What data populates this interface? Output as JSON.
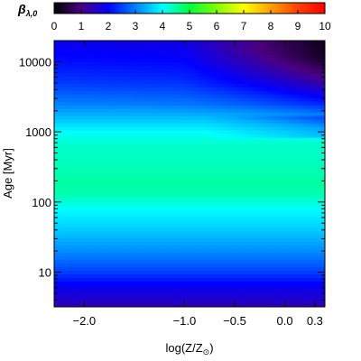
{
  "chart_data": {
    "type": "heatmap",
    "title": "",
    "xlabel": "log(Z/Z",
    "xlabel_sub": "⊙",
    "xlabel_close": ")",
    "ylabel": "Age [Myr]",
    "y_scale": "log",
    "xlim": [
      -2.3,
      0.4
    ],
    "ylim": [
      3.2,
      20000
    ],
    "x_ticks": [
      {
        "value": -2.0,
        "label": "−2.0"
      },
      {
        "value": -1.0,
        "label": "−1.0"
      },
      {
        "value": -0.5,
        "label": "−0.5"
      },
      {
        "value": 0.0,
        "label": "0.0"
      },
      {
        "value": 0.3,
        "label": "0.3"
      }
    ],
    "y_ticks": [
      {
        "value": 10,
        "label": "10"
      },
      {
        "value": 100,
        "label": "100"
      },
      {
        "value": 1000,
        "label": "1000"
      },
      {
        "value": 10000,
        "label": "10000"
      }
    ],
    "colorbar": {
      "label": "β",
      "label_sub": "λ,0",
      "range": [
        0,
        10
      ],
      "ticks": [
        "0",
        "1",
        "2",
        "3",
        "4",
        "5",
        "6",
        "7",
        "8",
        "9",
        "10"
      ],
      "colors": [
        "#000000",
        "#4b0082",
        "#0000ff",
        "#0080ff",
        "#00ffff",
        "#00ff40",
        "#80ff00",
        "#ffff00",
        "#ffa000",
        "#ff4000",
        "#ff0000"
      ]
    },
    "z_profile_log_age": [
      0.5,
      0.8,
      1.0,
      1.3,
      1.6,
      1.9,
      2.1,
      2.25,
      2.45,
      2.65,
      2.8,
      3.0,
      3.15,
      3.4,
      3.7,
      4.0,
      4.3
    ],
    "z_profile_values": [
      1.4,
      1.9,
      2.5,
      3.1,
      3.6,
      4.0,
      4.4,
      4.5,
      4.4,
      4.3,
      4.3,
      4.0,
      3.6,
      3.0,
      2.6,
      2.4,
      2.3
    ],
    "grid": false,
    "legend": "none"
  }
}
